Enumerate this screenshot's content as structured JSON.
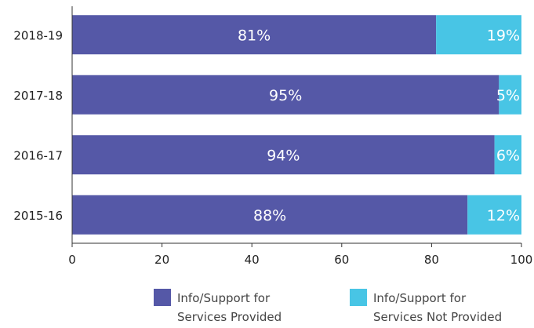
{
  "chart_data": {
    "type": "bar",
    "orientation": "horizontal",
    "stacked": true,
    "categories": [
      "2018-19",
      "2017-18",
      "2016-17",
      "2015-16"
    ],
    "series": [
      {
        "name": "Info/Support for Services Provided",
        "legend_lines": [
          "Info/Support for",
          "Services Provided"
        ],
        "values": [
          81,
          95,
          94,
          88
        ],
        "labels": [
          "81%",
          "95%",
          "94%",
          "88%"
        ],
        "color": "#5558A7"
      },
      {
        "name": "Info/Support for Services Not Provided",
        "legend_lines": [
          "Info/Support for",
          "Services Not Provided"
        ],
        "values": [
          19,
          5,
          6,
          12
        ],
        "labels": [
          "19%",
          "5%",
          "6%",
          "12%"
        ],
        "color": "#48C5E5"
      }
    ],
    "xlim": [
      0,
      100
    ],
    "xticks": [
      0,
      20,
      40,
      60,
      80,
      100
    ],
    "grid": false,
    "legend_position": "bottom"
  }
}
